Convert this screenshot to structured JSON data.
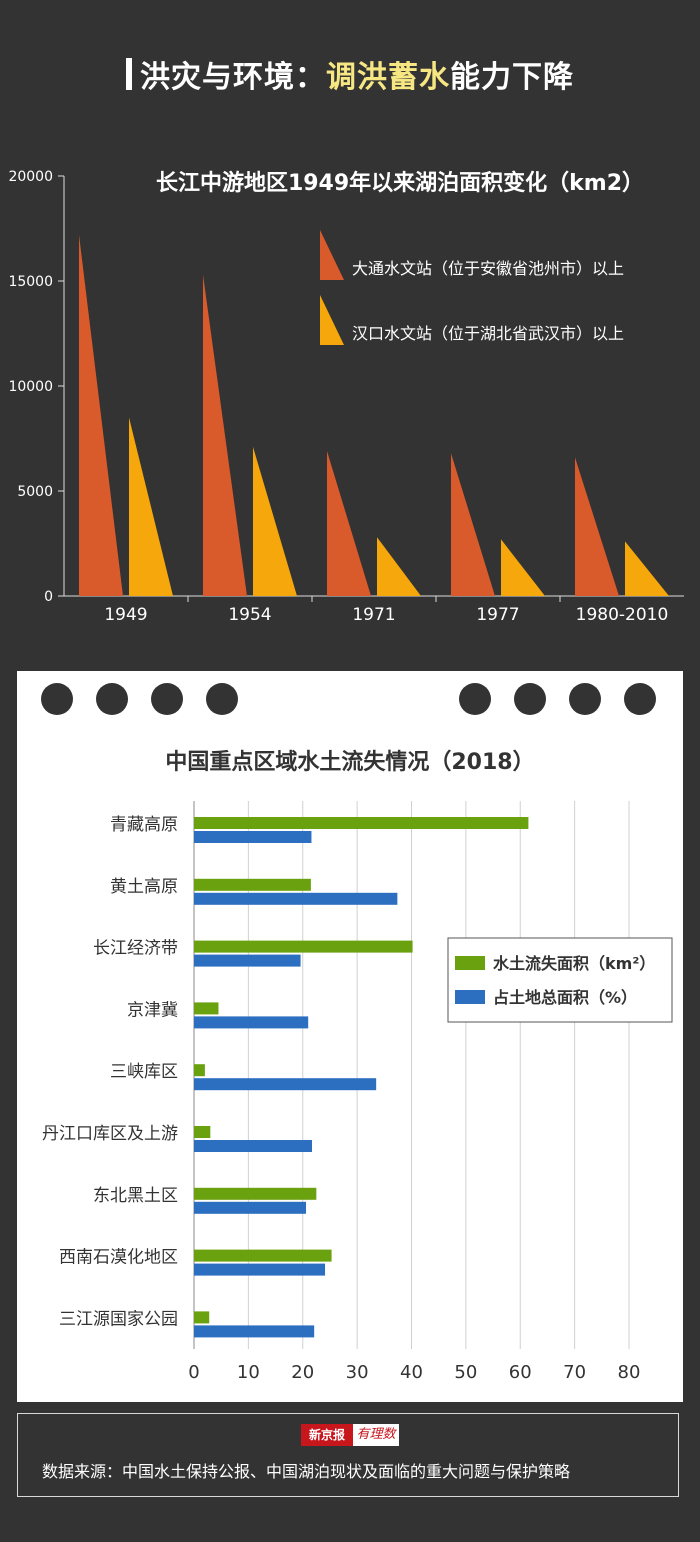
{
  "header": {
    "title_prefix": "洪灾与环境：",
    "title_highlight": "调洪蓄水",
    "title_suffix": "能力下降"
  },
  "colors": {
    "background": "#333333",
    "orange_series": "#d95a2b",
    "yellow_series": "#f5a70b",
    "green_series": "#6aa10e",
    "blue_series": "#2c6ebf",
    "highlight": "#f7e783"
  },
  "chart_data": [
    {
      "type": "bar",
      "title": "长江中游地区1949年以来湖泊面积变化（km2）",
      "categories": [
        "1949",
        "1954",
        "1971",
        "1977",
        "1980-2010"
      ],
      "series": [
        {
          "name": "大通水文站（位于安徽省池州市）以上",
          "values": [
            17200,
            15300,
            6900,
            6800,
            6600
          ]
        },
        {
          "name": "汉口水文站（位于湖北省武汉市）以上",
          "values": [
            8500,
            7100,
            2800,
            2700,
            2600
          ]
        }
      ],
      "y_ticks": [
        "0",
        "5000",
        "10000",
        "15000",
        "20000"
      ],
      "ylim": [
        0,
        20000
      ],
      "legend_position": "top-right",
      "grid": false
    },
    {
      "type": "bar",
      "orientation": "horizontal",
      "title": "中国重点区域水土流失情况（2018）",
      "categories": [
        "青藏高原",
        "黄土高原",
        "长江经济带",
        "京津冀",
        "三峡库区",
        "丹江口库区及上游",
        "东北黑土区",
        "西南石漠化地区",
        "三江源国家公园"
      ],
      "series": [
        {
          "name": "水土流失面积（km²）",
          "values": [
            61.5,
            21.5,
            40.2,
            4.5,
            2.0,
            3.0,
            22.5,
            25.3,
            2.8
          ]
        },
        {
          "name": "占土地总面积（%）",
          "values": [
            21.6,
            37.4,
            19.6,
            21.0,
            33.5,
            21.7,
            20.6,
            24.1,
            22.1
          ]
        }
      ],
      "x_ticks": [
        "0",
        "10",
        "20",
        "30",
        "40",
        "50",
        "60",
        "70",
        "80"
      ],
      "xlim": [
        0,
        80
      ],
      "legend_position": "right",
      "grid": true
    }
  ],
  "footer": {
    "logo_left": "新京报",
    "logo_right": "有理数",
    "source": "数据来源：中国水土保持公报、中国湖泊现状及面临的重大问题与保护策略"
  }
}
